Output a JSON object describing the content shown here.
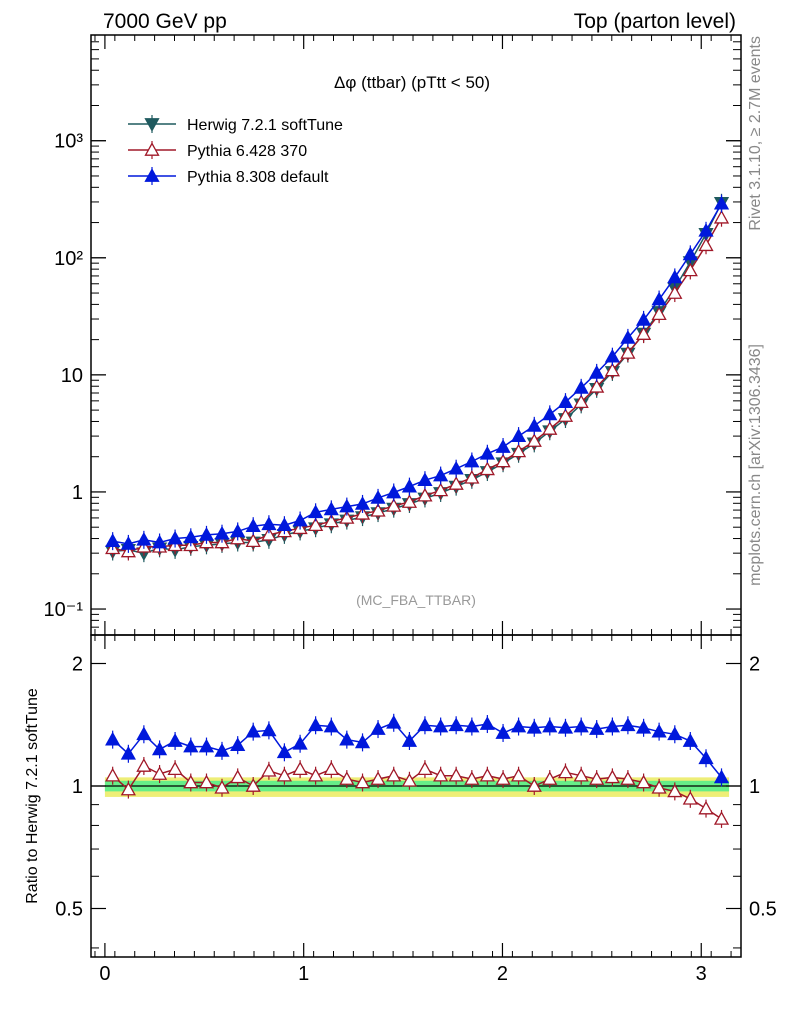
{
  "header": {
    "left": "7000 GeV pp",
    "right": "Top (parton level)"
  },
  "side_labels": {
    "rivet": "Rivet 3.1.10, ≥ 2.7M events",
    "mcplots": "mcplots.cern.ch [arXiv:1306.3436]"
  },
  "colors": {
    "herwig": "#1f5a5f",
    "pythia6": "#a01828",
    "pythia8": "#0018dc",
    "band_inner": "#66ee88",
    "band_outer": "#eeee77"
  },
  "chart_data": [
    {
      "type": "line",
      "title": "Δφ (ttbar) (pTtt < 50)",
      "annotation": "(MC_FBA_TTBAR)",
      "xlabel": "",
      "ylabel": "",
      "xlim": [
        -0.07,
        3.2
      ],
      "ylim": [
        0.06,
        8000
      ],
      "yscale": "log",
      "xticks": [
        0,
        1,
        2,
        3
      ],
      "yticks": [
        {
          "value": 0.1,
          "label": "10⁻¹"
        },
        {
          "value": 1,
          "label": "1"
        },
        {
          "value": 10,
          "label": "10"
        },
        {
          "value": 100,
          "label": "10²"
        },
        {
          "value": 1000,
          "label": "10³"
        }
      ],
      "legend_position": "top-left",
      "x": [
        0.039,
        0.118,
        0.196,
        0.275,
        0.353,
        0.432,
        0.511,
        0.589,
        0.668,
        0.746,
        0.825,
        0.903,
        0.982,
        1.06,
        1.139,
        1.217,
        1.296,
        1.374,
        1.453,
        1.532,
        1.61,
        1.689,
        1.767,
        1.846,
        1.924,
        2.003,
        2.081,
        2.16,
        2.238,
        2.317,
        2.396,
        2.474,
        2.553,
        2.631,
        2.71,
        2.788,
        2.867,
        2.945,
        3.024,
        3.102
      ],
      "series": [
        {
          "name": "Herwig 7.2.1 softTune",
          "marker": "triangle-down",
          "values": [
            0.31,
            0.32,
            0.3,
            0.33,
            0.32,
            0.34,
            0.35,
            0.36,
            0.37,
            0.37,
            0.39,
            0.43,
            0.46,
            0.49,
            0.53,
            0.57,
            0.61,
            0.66,
            0.72,
            0.79,
            0.88,
            0.98,
            1.11,
            1.27,
            1.48,
            1.76,
            2.12,
            2.6,
            3.3,
            4.2,
            5.6,
            7.6,
            10.6,
            15.2,
            22.5,
            34.5,
            55.0,
            92.0,
            160.0,
            295.0
          ]
        },
        {
          "name": "Pythia 6.428 370",
          "marker": "triangle-up-open",
          "values": [
            0.33,
            0.31,
            0.34,
            0.34,
            0.35,
            0.35,
            0.37,
            0.37,
            0.4,
            0.38,
            0.43,
            0.46,
            0.49,
            0.52,
            0.56,
            0.6,
            0.65,
            0.69,
            0.76,
            0.82,
            0.93,
            1.03,
            1.17,
            1.32,
            1.56,
            1.82,
            2.22,
            2.72,
            3.45,
            4.45,
            5.85,
            7.9,
            10.9,
            15.4,
            22.3,
            33.0,
            50.0,
            78.0,
            128.0,
            220.0
          ]
        },
        {
          "name": "Pythia 8.308 default",
          "marker": "triangle-up",
          "values": [
            0.38,
            0.36,
            0.39,
            0.37,
            0.4,
            0.41,
            0.43,
            0.44,
            0.46,
            0.51,
            0.53,
            0.52,
            0.57,
            0.67,
            0.71,
            0.75,
            0.79,
            0.89,
            0.99,
            1.11,
            1.26,
            1.38,
            1.58,
            1.82,
            2.12,
            2.42,
            3.0,
            3.67,
            4.6,
            5.85,
            7.75,
            10.4,
            14.3,
            20.7,
            29.5,
            44.0,
            68.0,
            107.0,
            170.0,
            290.0
          ]
        }
      ]
    },
    {
      "type": "line",
      "title": "",
      "xlabel": "",
      "ylabel": "Ratio to Herwig 7.2.1 softTune",
      "xlim": [
        -0.07,
        3.2
      ],
      "ylim": [
        0.38,
        2.35
      ],
      "yscale": "log",
      "xticks": [
        0,
        1,
        2,
        3
      ],
      "yticks": [
        {
          "value": 0.5,
          "label": "0.5"
        },
        {
          "value": 1,
          "label": "1"
        },
        {
          "value": 2,
          "label": "2"
        }
      ],
      "reference_line": 1,
      "x": [
        0.039,
        0.118,
        0.196,
        0.275,
        0.353,
        0.432,
        0.511,
        0.589,
        0.668,
        0.746,
        0.825,
        0.903,
        0.982,
        1.06,
        1.139,
        1.217,
        1.296,
        1.374,
        1.453,
        1.532,
        1.61,
        1.689,
        1.767,
        1.846,
        1.924,
        2.003,
        2.081,
        2.16,
        2.238,
        2.317,
        2.396,
        2.474,
        2.553,
        2.631,
        2.71,
        2.788,
        2.867,
        2.945,
        3.024,
        3.102
      ],
      "band": {
        "inner_low": 0.97,
        "inner_high": 1.03,
        "outer_low": 0.94,
        "outer_high": 1.05
      },
      "series": [
        {
          "name": "Pythia 6.428 370",
          "marker": "triangle-up-open",
          "values": [
            1.06,
            0.98,
            1.12,
            1.07,
            1.1,
            1.02,
            1.02,
            0.99,
            1.05,
            1.0,
            1.09,
            1.06,
            1.1,
            1.06,
            1.1,
            1.04,
            1.02,
            1.04,
            1.06,
            1.03,
            1.1,
            1.06,
            1.06,
            1.04,
            1.06,
            1.04,
            1.06,
            1.0,
            1.04,
            1.08,
            1.06,
            1.04,
            1.05,
            1.04,
            1.02,
            0.99,
            0.97,
            0.93,
            0.88,
            0.83
          ]
        },
        {
          "name": "Pythia 8.308 default",
          "marker": "triangle-up",
          "values": [
            1.3,
            1.2,
            1.34,
            1.23,
            1.29,
            1.25,
            1.25,
            1.22,
            1.26,
            1.36,
            1.37,
            1.21,
            1.27,
            1.41,
            1.4,
            1.3,
            1.28,
            1.38,
            1.43,
            1.29,
            1.41,
            1.4,
            1.41,
            1.4,
            1.42,
            1.35,
            1.4,
            1.39,
            1.4,
            1.39,
            1.4,
            1.38,
            1.4,
            1.41,
            1.39,
            1.36,
            1.34,
            1.29,
            1.17,
            1.05
          ]
        }
      ]
    }
  ]
}
